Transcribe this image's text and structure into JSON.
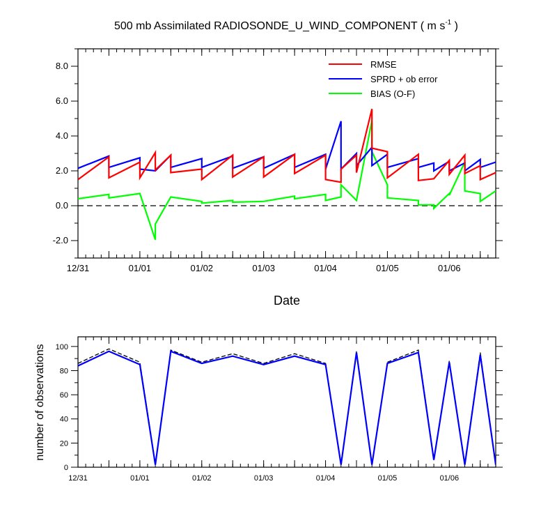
{
  "chart_data": [
    {
      "type": "line",
      "title": "500 mb Assimilated RADIOSONDE_U_WIND_COMPONENT ( m s",
      "title_sup": "-1",
      "title_close": " )",
      "xlabel": "Date",
      "ylabel": "",
      "ylim": [
        -3,
        9
      ],
      "xlim": [
        0,
        6.75
      ],
      "yticks": [
        -2,
        0,
        2,
        4,
        6,
        8
      ],
      "ytick_labels": [
        "-2.0",
        "0.0",
        "2.0",
        "4.0",
        "6.0",
        "8.0"
      ],
      "xticks": [
        0,
        1,
        2,
        3,
        4,
        5,
        6
      ],
      "xtick_labels": [
        "12/31",
        "01/01",
        "01/02",
        "01/03",
        "01/04",
        "01/05",
        "01/06"
      ],
      "zero_line": true,
      "grid": false,
      "legend_position": "top-right",
      "series": [
        {
          "name": "RMSE",
          "color": "#ff0000",
          "x": [
            0,
            0.5,
            0.5,
            1,
            1,
            1.25,
            1.25,
            1.5,
            1.5,
            2,
            2,
            2.5,
            2.5,
            3,
            3,
            3.5,
            3.5,
            4,
            4,
            4.25,
            4.25,
            4.5,
            4.5,
            4.75,
            4.75,
            5,
            5,
            5.5,
            5.5,
            5.75,
            5.75,
            6,
            6,
            6.25,
            6.25,
            6.5,
            6.5,
            6.75
          ],
          "y": [
            1.5,
            2.8,
            1.6,
            2.5,
            1.6,
            3.05,
            2.05,
            2.9,
            1.9,
            2.1,
            1.5,
            2.9,
            1.65,
            2.8,
            1.65,
            2.95,
            1.85,
            2.9,
            1.5,
            1.35,
            2.1,
            2.9,
            1.9,
            5.55,
            3.3,
            3.1,
            1.6,
            2.95,
            1.45,
            1.55,
            1.55,
            2.6,
            1.8,
            2.9,
            1.85,
            2.3,
            1.5,
            1.9
          ]
        },
        {
          "name": "SPRD + ob error",
          "color": "#0000ff",
          "x": [
            0,
            0.5,
            0.5,
            1,
            1,
            1.25,
            1.25,
            1.5,
            1.5,
            2,
            2,
            2.5,
            2.5,
            3,
            3,
            3.5,
            3.5,
            4,
            4,
            4.25,
            4.25,
            4.5,
            4.5,
            4.75,
            4.75,
            5,
            5,
            5.5,
            5.5,
            5.75,
            5.75,
            6,
            6,
            6.25,
            6.25,
            6.5,
            6.5,
            6.75
          ],
          "y": [
            2.15,
            2.85,
            2.2,
            2.75,
            2.1,
            2.0,
            2.0,
            2.9,
            2.2,
            2.7,
            2.2,
            2.85,
            2.15,
            2.8,
            2.15,
            2.95,
            2.2,
            2.95,
            2.1,
            4.85,
            2.1,
            3.0,
            2.3,
            3.35,
            2.3,
            2.95,
            2.2,
            2.7,
            2.2,
            2.45,
            2.0,
            2.55,
            2.0,
            2.45,
            2.0,
            2.65,
            2.2,
            2.5
          ]
        },
        {
          "name": "BIAS (O-F)",
          "color": "#00ff00",
          "x": [
            0,
            0.5,
            0.5,
            1,
            1,
            1.25,
            1.25,
            1.5,
            1.5,
            2,
            2,
            2.5,
            2.5,
            3,
            3,
            3.5,
            3.5,
            4,
            4,
            4.25,
            4.25,
            4.5,
            4.5,
            4.75,
            4.75,
            5,
            5,
            5.5,
            5.5,
            5.75,
            5.75,
            6,
            6,
            6.25,
            6.25,
            6.5,
            6.5,
            6.75
          ],
          "y": [
            0.4,
            0.65,
            0.45,
            0.7,
            0.7,
            -1.95,
            -1.05,
            0.5,
            0.5,
            0.25,
            0.15,
            0.3,
            0.2,
            0.25,
            0.25,
            0.55,
            0.4,
            0.65,
            0.3,
            0.5,
            1.2,
            0.3,
            0.3,
            4.9,
            3.1,
            1.2,
            0.45,
            0.3,
            0.05,
            0.05,
            -0.15,
            0.7,
            0.6,
            2.5,
            0.85,
            0.7,
            0.25,
            0.85
          ]
        }
      ]
    },
    {
      "type": "line",
      "title": "",
      "xlabel": "",
      "ylabel": "number of observations",
      "ylim": [
        0,
        108
      ],
      "xlim": [
        0,
        6.75
      ],
      "yticks": [
        0,
        20,
        40,
        60,
        80,
        100
      ],
      "ytick_labels": [
        "0",
        "20",
        "40",
        "60",
        "80",
        "100"
      ],
      "xticks": [
        0,
        1,
        2,
        3,
        4,
        5,
        6
      ],
      "xtick_labels": [
        "12/31",
        "01/01",
        "01/02",
        "01/03",
        "01/04",
        "01/05",
        "01/06"
      ],
      "grid": false,
      "series": [
        {
          "color": "#0000ff",
          "dash": false,
          "x": [
            0,
            0.5,
            1,
            1.25,
            1.5,
            2,
            2.5,
            3,
            3.5,
            4,
            4.25,
            4.5,
            4.75,
            5,
            5.5,
            5.75,
            6,
            6.25,
            6.5,
            6.75
          ],
          "y": [
            84,
            96,
            85,
            2,
            96,
            86,
            92,
            85,
            92,
            85,
            2,
            95,
            2,
            86,
            95,
            6,
            87,
            2,
            93,
            2
          ]
        },
        {
          "color": "#000000",
          "dash": true,
          "x": [
            0,
            0.5,
            1,
            1.25,
            1.5,
            2,
            2.5,
            3,
            3.5,
            4,
            4.25,
            4.5,
            4.75,
            5,
            5.5,
            5.75,
            6,
            6.25,
            6.5,
            6.75
          ],
          "y": [
            86,
            98,
            87,
            3,
            97,
            87,
            94,
            86,
            94,
            86,
            3,
            96,
            3,
            87,
            97,
            7,
            88,
            3,
            95,
            3
          ]
        }
      ]
    }
  ]
}
